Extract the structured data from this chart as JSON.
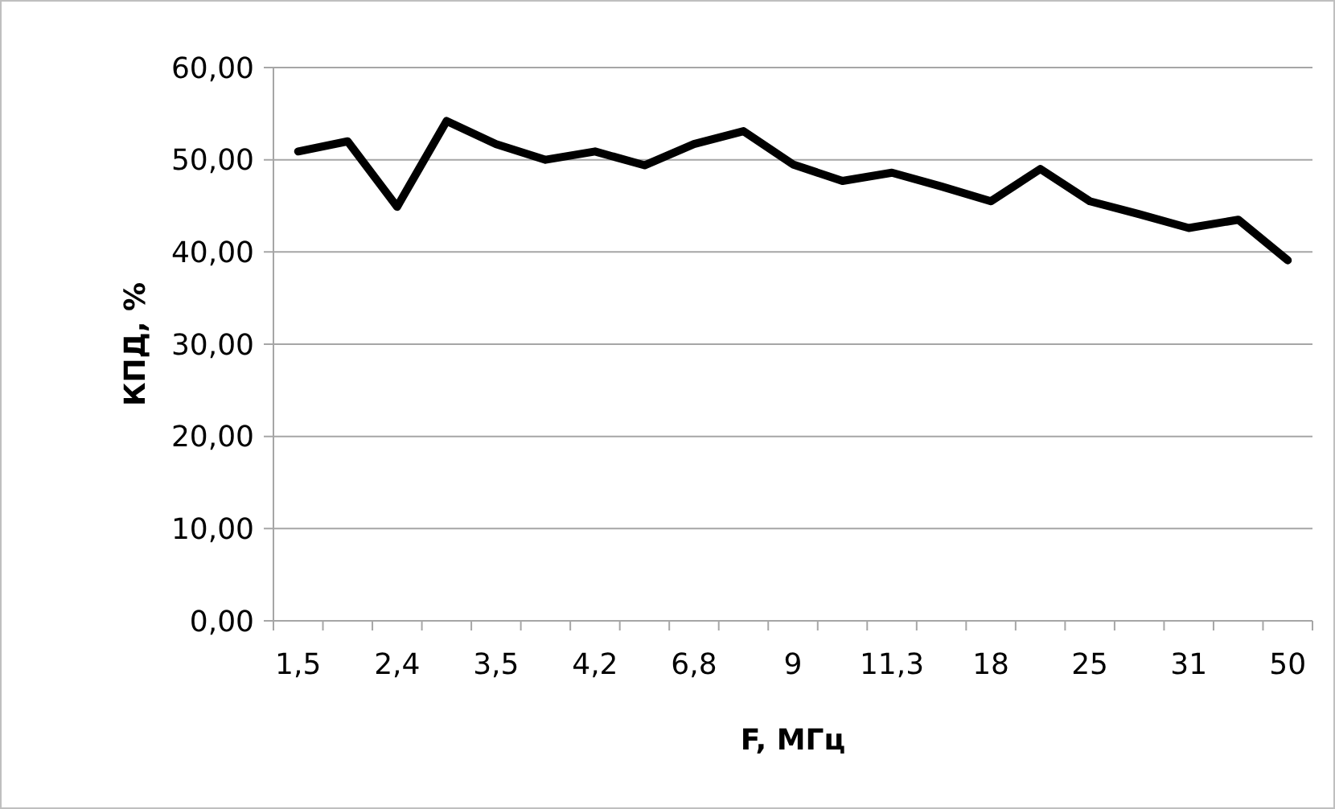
{
  "chart_data": {
    "type": "line",
    "xlabel": "F, МГц",
    "ylabel": "КПД, %",
    "categories": [
      "1,5",
      null,
      "2,4",
      null,
      "3,5",
      null,
      "4,2",
      null,
      "6,8",
      null,
      "9",
      null,
      "11,3",
      null,
      "18",
      null,
      "25",
      null,
      "31",
      null,
      "50"
    ],
    "series": [
      {
        "color": "#000000",
        "values": [
          50.9,
          52.0,
          44.9,
          54.2,
          51.7,
          50.0,
          50.9,
          49.4,
          51.7,
          53.1,
          49.5,
          47.7,
          48.6,
          47.1,
          45.5,
          49.0,
          45.5,
          44.1,
          42.6,
          43.5,
          39.1
        ]
      }
    ],
    "ylim": [
      0,
      60
    ],
    "yticks": [
      {
        "value": 0,
        "label": "0,00"
      },
      {
        "value": 10,
        "label": "10,00"
      },
      {
        "value": 20,
        "label": "20,00"
      },
      {
        "value": 30,
        "label": "30,00"
      },
      {
        "value": 40,
        "label": "40,00"
      },
      {
        "value": 50,
        "label": "50,00"
      },
      {
        "value": 60,
        "label": "60,00"
      }
    ],
    "grid": "y",
    "marker": "none",
    "line_style": "solid"
  }
}
